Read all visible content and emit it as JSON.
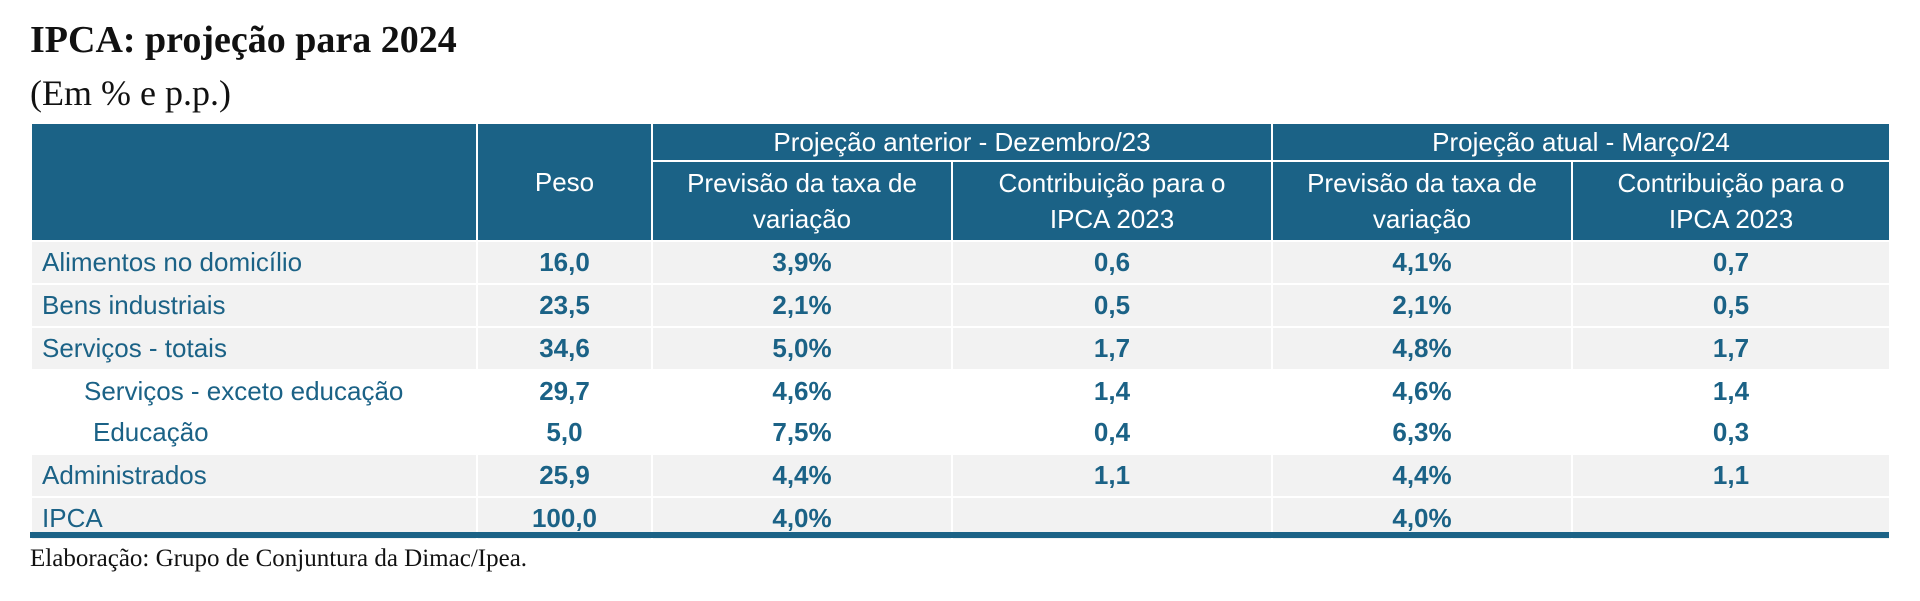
{
  "title": "IPCA: projeção para 2024",
  "subtitle": "(Em % e p.p.)",
  "table": {
    "group_headers": [
      "Projeção anterior - Dezembro/23",
      "Projeção atual - Março/24"
    ],
    "col_peso": "Peso",
    "col_prev": [
      "Previsão da taxa de",
      "variação"
    ],
    "col_contrib": [
      "Contribuição para o",
      "IPCA 2023"
    ],
    "rows": [
      {
        "label": "Alimentos no domicílio",
        "peso": "16,0",
        "prev_ant": "3,9%",
        "contrib_ant": "0,6",
        "prev_at": "4,1%",
        "contrib_at": "0,7"
      },
      {
        "label": "Bens industriais",
        "peso": "23,5",
        "prev_ant": "2,1%",
        "contrib_ant": "0,5",
        "prev_at": "2,1%",
        "contrib_at": "0,5"
      },
      {
        "label": "Serviços - totais",
        "peso": "34,6",
        "prev_ant": "5,0%",
        "contrib_ant": "1,7",
        "prev_at": "4,8%",
        "contrib_at": "1,7"
      },
      {
        "label": "Serviços - exceto educação",
        "peso": "29,7",
        "prev_ant": "4,6%",
        "contrib_ant": "1,4",
        "prev_at": "4,6%",
        "contrib_at": "1,4"
      },
      {
        "label": "Educação",
        "peso": "5,0",
        "prev_ant": "7,5%",
        "contrib_ant": "0,4",
        "prev_at": "6,3%",
        "contrib_at": "0,3"
      },
      {
        "label": "Administrados",
        "peso": "25,9",
        "prev_ant": "4,4%",
        "contrib_ant": "1,1",
        "prev_at": "4,4%",
        "contrib_at": "1,1"
      },
      {
        "label": "IPCA",
        "peso": "100,0",
        "prev_ant": "4,0%",
        "contrib_ant": "",
        "prev_at": "4,0%",
        "contrib_at": ""
      }
    ]
  },
  "source": "Elaboração: Grupo de Conjuntura da Dimac/Ipea.",
  "colors": {
    "header_bg": "#1b6286",
    "text_accent": "#1b6286",
    "row_shade": "#f2f2f2"
  }
}
